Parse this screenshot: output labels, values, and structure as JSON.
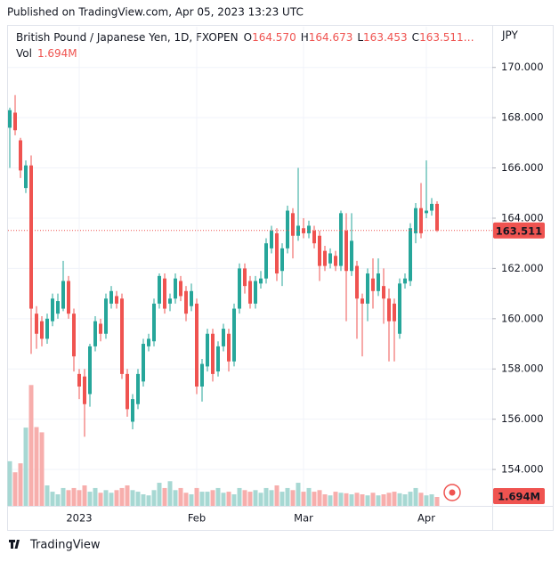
{
  "header": {
    "published": "Published on TradingView.com, Apr 05, 2023 13:23 UTC"
  },
  "footer": {
    "brand": "TradingView"
  },
  "chart_data": {
    "type": "candlestick",
    "title": "British Pound / Japanese Yen, 1D, FXOPEN",
    "header_ohlc": [
      {
        "key": "O",
        "value": 164.57,
        "label": "164.570"
      },
      {
        "key": "H",
        "value": 164.673,
        "label": "164.673"
      },
      {
        "key": "L",
        "value": 163.453,
        "label": "163.453"
      },
      {
        "key": "C",
        "value": 163.511,
        "label": "163.511…"
      }
    ],
    "currency": "JPY",
    "volume_name": "Vol",
    "volume_label": "1.694M",
    "categories": [
      null,
      null,
      null,
      null,
      null,
      null,
      null,
      null,
      null,
      null,
      null,
      null,
      null,
      "2023",
      null,
      null,
      null,
      null,
      null,
      null,
      null,
      null,
      null,
      null,
      null,
      null,
      null,
      null,
      null,
      null,
      null,
      null,
      null,
      null,
      null,
      "Feb",
      null,
      null,
      null,
      null,
      null,
      null,
      null,
      null,
      null,
      null,
      null,
      null,
      null,
      null,
      null,
      null,
      null,
      null,
      null,
      "Mar",
      null,
      null,
      null,
      null,
      null,
      null,
      null,
      null,
      null,
      null,
      null,
      null,
      null,
      null,
      null,
      null,
      null,
      null,
      null,
      null,
      null,
      null,
      "Apr",
      null,
      null
    ],
    "open": [
      167.6,
      168.2,
      167.1,
      165.2,
      166.1,
      160.2,
      159.9,
      159.2,
      159.9,
      160.2,
      160.4,
      161.5,
      160.2,
      157.8,
      157.7,
      157.0,
      158.9,
      159.8,
      159.4,
      160.6,
      160.9,
      160.8,
      157.8,
      155.9,
      156.6,
      157.5,
      158.9,
      159.1,
      160.6,
      161.6,
      160.6,
      160.8,
      161.5,
      161.1,
      160.5,
      160.6,
      157.3,
      158.1,
      159.4,
      157.9,
      158.9,
      159.4,
      158.3,
      160.4,
      162.0,
      161.5,
      160.6,
      161.4,
      161.6,
      162.8,
      163.4,
      161.9,
      162.8,
      164.2,
      163.3,
      163.6,
      163.4,
      163.5,
      163.3,
      162.7,
      162.2,
      162.5,
      162.1,
      163.5,
      161.9,
      162.1,
      160.8,
      160.6,
      161.6,
      161.1,
      161.3,
      160.8,
      160.6,
      159.4,
      161.4,
      161.5,
      163.4,
      164.4,
      164.2,
      164.3,
      164.57
    ],
    "high": [
      168.4,
      168.9,
      167.2,
      166.3,
      166.5,
      160.5,
      160.1,
      160.2,
      161.0,
      161.0,
      162.3,
      161.7,
      160.4,
      158.0,
      158.0,
      159.0,
      160.1,
      160.0,
      161.0,
      161.3,
      161.1,
      161.0,
      158.0,
      157.0,
      158.0,
      159.2,
      159.4,
      160.8,
      161.8,
      161.8,
      161.0,
      161.8,
      161.7,
      161.3,
      161.4,
      160.8,
      158.4,
      159.6,
      159.6,
      159.1,
      159.8,
      159.6,
      160.6,
      162.2,
      162.2,
      161.7,
      161.7,
      161.9,
      163.2,
      163.7,
      163.6,
      163.0,
      164.5,
      164.4,
      166.0,
      164.0,
      163.9,
      163.7,
      163.5,
      162.9,
      162.8,
      162.7,
      164.3,
      164.2,
      164.2,
      162.3,
      161.0,
      162.0,
      162.4,
      162.4,
      162.0,
      161.2,
      160.8,
      161.6,
      161.8,
      163.8,
      164.6,
      165.4,
      166.3,
      164.8,
      164.673
    ],
    "low": [
      166.0,
      167.3,
      165.6,
      165.0,
      158.6,
      158.8,
      158.9,
      159.0,
      159.7,
      160.0,
      160.3,
      160.0,
      157.9,
      156.8,
      155.3,
      156.5,
      158.7,
      159.1,
      159.2,
      160.4,
      160.4,
      157.6,
      156.1,
      155.6,
      156.4,
      157.3,
      158.7,
      158.9,
      160.4,
      160.2,
      160.3,
      160.6,
      160.7,
      159.9,
      160.3,
      157.0,
      156.7,
      157.9,
      157.5,
      157.7,
      158.7,
      157.9,
      158.1,
      160.2,
      161.0,
      160.4,
      160.4,
      161.2,
      161.4,
      162.6,
      161.5,
      161.3,
      162.6,
      162.4,
      163.1,
      163.2,
      163.2,
      162.8,
      161.5,
      161.9,
      162.0,
      161.9,
      161.9,
      159.9,
      161.7,
      159.2,
      158.5,
      159.9,
      160.4,
      160.9,
      159.8,
      158.3,
      158.3,
      159.2,
      161.2,
      161.3,
      163.0,
      163.2,
      164.0,
      164.1,
      163.453
    ],
    "close": [
      168.3,
      167.5,
      165.9,
      166.1,
      160.4,
      159.4,
      159.2,
      160.0,
      160.8,
      160.7,
      161.5,
      160.2,
      158.5,
      157.3,
      156.6,
      158.9,
      159.9,
      159.4,
      160.8,
      161.1,
      160.6,
      157.8,
      156.4,
      156.8,
      157.8,
      159.0,
      159.2,
      160.6,
      161.7,
      160.4,
      160.8,
      161.6,
      160.9,
      160.2,
      161.1,
      157.3,
      158.2,
      159.4,
      157.8,
      158.9,
      159.6,
      158.3,
      160.4,
      162.0,
      161.3,
      160.6,
      161.5,
      161.6,
      163.0,
      163.5,
      161.8,
      162.8,
      164.3,
      163.3,
      163.7,
      163.4,
      163.7,
      163.0,
      162.1,
      162.1,
      162.6,
      162.1,
      164.2,
      161.9,
      163.1,
      160.8,
      160.6,
      161.8,
      161.1,
      161.8,
      160.8,
      159.9,
      159.9,
      161.4,
      161.6,
      163.6,
      164.4,
      163.4,
      164.3,
      164.57,
      163.511
    ],
    "volume": [
      8.5,
      6.4,
      8.1,
      14.9,
      23.0,
      15.0,
      14.0,
      3.9,
      2.7,
      2.2,
      3.4,
      3.0,
      3.4,
      3.0,
      3.9,
      2.7,
      3.4,
      2.5,
      3.0,
      2.5,
      3.0,
      3.4,
      3.9,
      3.0,
      2.7,
      2.2,
      2.0,
      3.0,
      4.4,
      3.4,
      4.7,
      3.0,
      3.4,
      2.5,
      2.2,
      3.4,
      2.7,
      2.7,
      3.0,
      3.4,
      2.5,
      2.7,
      2.2,
      3.4,
      3.0,
      2.7,
      3.0,
      2.5,
      3.4,
      3.0,
      3.9,
      2.7,
      3.4,
      3.0,
      4.4,
      2.7,
      3.4,
      2.7,
      3.0,
      2.2,
      2.0,
      2.7,
      2.5,
      2.4,
      2.2,
      2.5,
      2.2,
      2.0,
      2.5,
      2.0,
      2.2,
      2.5,
      2.7,
      2.4,
      2.2,
      2.7,
      3.4,
      2.5,
      2.0,
      2.2,
      1.694
    ],
    "up_color": "#26a69a",
    "down_color": "#ef5350",
    "volume_up_color": "#a7d8d3",
    "volume_down_color": "#f7aeac",
    "ylim": [
      152.55,
      171.62
    ],
    "yticks": [
      {
        "value": 154,
        "label": "154.000"
      },
      {
        "value": 156,
        "label": "156.000"
      },
      {
        "value": 158,
        "label": "158.000"
      },
      {
        "value": 160,
        "label": "160.000"
      },
      {
        "value": 162,
        "label": "162.000"
      },
      {
        "value": 164,
        "label": "164.000"
      },
      {
        "value": 166,
        "label": "166.000"
      },
      {
        "value": 168,
        "label": "168.000"
      },
      {
        "value": 170,
        "label": "170.000"
      }
    ],
    "grid": true
  }
}
